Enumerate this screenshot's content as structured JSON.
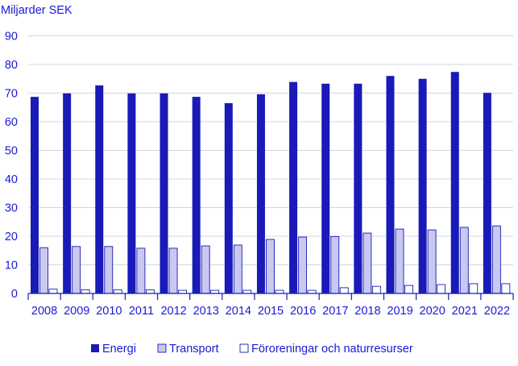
{
  "chart_data": {
    "type": "bar",
    "ylabel": "Miljarder SEK",
    "ylim": [
      0,
      90
    ],
    "yticks": [
      "0",
      "10",
      "20",
      "30",
      "40",
      "50",
      "60",
      "70",
      "80",
      "90"
    ],
    "grid": true,
    "legend_position": "bottom",
    "categories": [
      "2008",
      "2009",
      "2010",
      "2011",
      "2012",
      "2013",
      "2014",
      "2015",
      "2016",
      "2017",
      "2018",
      "2019",
      "2020",
      "2021",
      "2022"
    ],
    "series": [
      {
        "name": "Energi",
        "color": "#1a1ab8",
        "values": [
          68.7,
          69.9,
          72.7,
          69.9,
          69.9,
          68.7,
          66.5,
          69.6,
          73.9,
          73.3,
          73.3,
          76.0,
          75.0,
          77.4,
          70.1
        ]
      },
      {
        "name": "Transport",
        "color": "#c8c8f0",
        "values": [
          16.0,
          16.4,
          16.4,
          15.8,
          15.8,
          16.6,
          16.9,
          18.9,
          19.7,
          19.9,
          21.1,
          22.5,
          22.2,
          23.1,
          23.6
        ]
      },
      {
        "name": "Föroreningar och naturresurser",
        "color": "#ffffff",
        "values": [
          1.5,
          1.3,
          1.3,
          1.3,
          1.1,
          1.1,
          1.1,
          1.1,
          1.1,
          2.0,
          2.5,
          2.8,
          3.1,
          3.4,
          3.4
        ]
      }
    ]
  }
}
